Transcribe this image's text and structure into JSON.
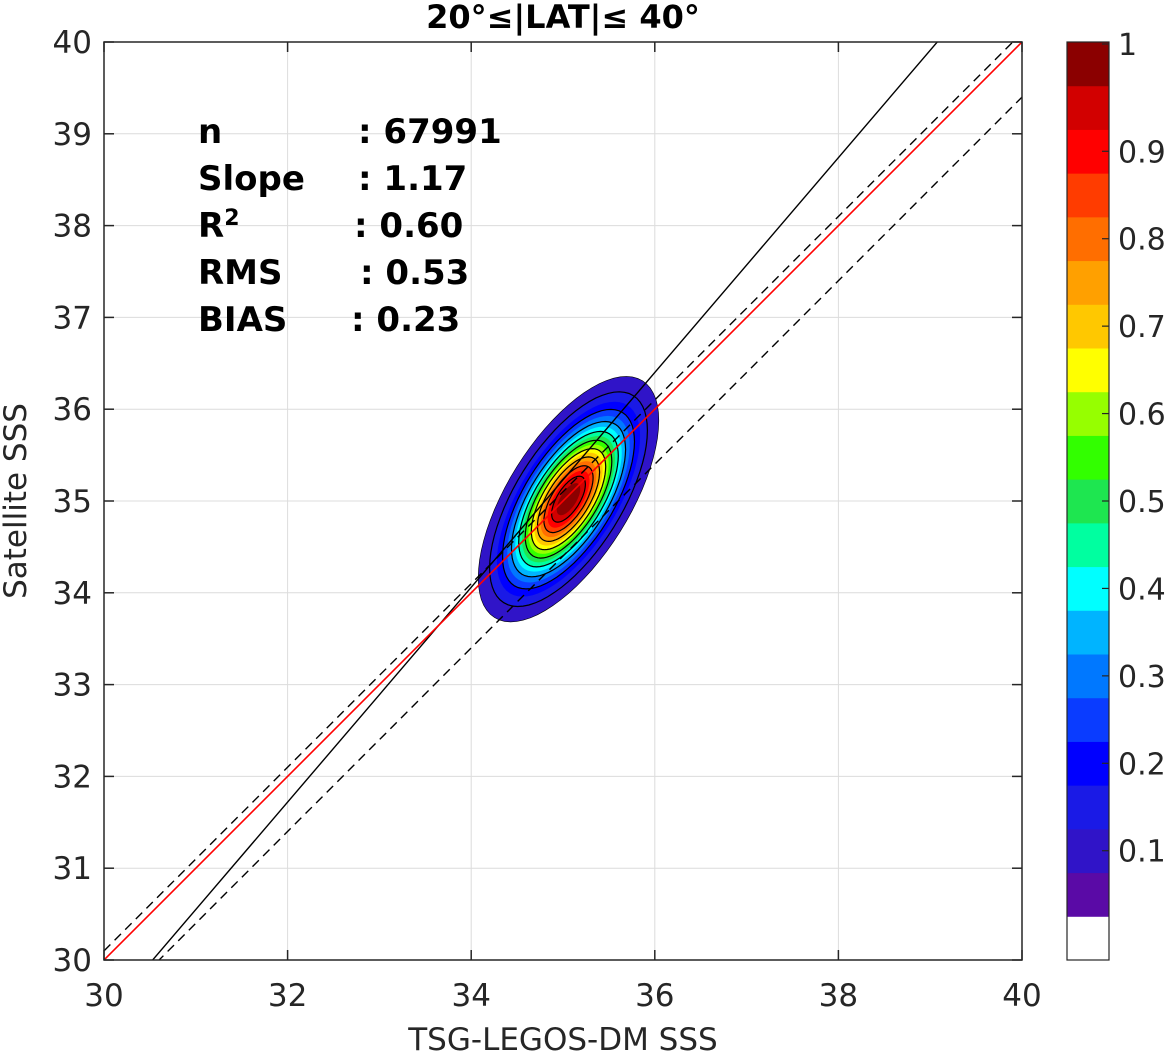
{
  "chart_data": {
    "type": "contour-scatter",
    "title": "20°≤|LAT|≤ 40°",
    "xlabel": "TSG-LEGOS-DM SSS",
    "ylabel": "Satellite SSS",
    "xlim": [
      30,
      40
    ],
    "ylim": [
      30,
      40
    ],
    "xticks": [
      "30",
      "32",
      "34",
      "36",
      "38",
      "40"
    ],
    "yticks": [
      "30",
      "31",
      "32",
      "33",
      "34",
      "35",
      "36",
      "37",
      "38",
      "39",
      "40"
    ],
    "grid": true,
    "stats": [
      {
        "label": "n",
        "value": ": 67991"
      },
      {
        "label": "Slope",
        "value": ": 1.17"
      },
      {
        "label": "R",
        "sup": "2",
        "value": ": 0.60"
      },
      {
        "label": "RMS",
        "value": ": 0.53"
      },
      {
        "label": "BIAS",
        "value": ": 0.23"
      }
    ],
    "lines": {
      "one_to_one": {
        "slope": 1,
        "intercept": 0,
        "color": "#ff0000"
      },
      "regression": {
        "slope": 1.17,
        "center": [
          35.0,
          35.23
        ],
        "color": "#000000"
      },
      "upper_dashed": {
        "slope": 1,
        "intercept": 0.1,
        "color": "#000000"
      },
      "lower_dashed": {
        "slope": 1,
        "intercept": -0.6,
        "color": "#000000"
      }
    },
    "density": {
      "center": [
        35.06,
        35.02
      ],
      "sigma_major": 0.62,
      "sigma_minor": 0.27,
      "angle_deg": 58,
      "cutoff": 0.05
    },
    "colorbar": {
      "ticks": [
        "0.1",
        "0.2",
        "0.3",
        "0.4",
        "0.5",
        "0.6",
        "0.7",
        "0.8",
        "0.9",
        "1"
      ],
      "colors": [
        "#ffffff",
        "#5a0aa6",
        "#3014c8",
        "#1a1ae6",
        "#0000ff",
        "#0a3cff",
        "#0078ff",
        "#00b4ff",
        "#00ffff",
        "#00ffa0",
        "#1ee650",
        "#32ff00",
        "#96ff00",
        "#ffff00",
        "#ffc800",
        "#ffa000",
        "#ff6e00",
        "#ff3c00",
        "#ff0000",
        "#d20000",
        "#8b0000"
      ]
    }
  }
}
